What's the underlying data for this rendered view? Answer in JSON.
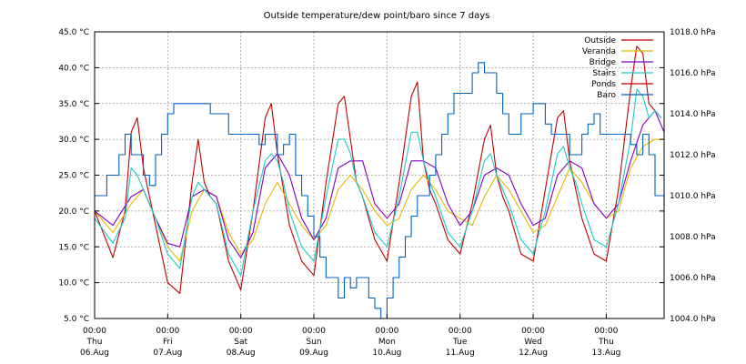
{
  "chart_data": {
    "type": "line",
    "title": "Outside temperature/dew point/baro since 7 days",
    "x_ticks": [
      {
        "hour": 0,
        "time": "00:00",
        "day": "Thu",
        "date": "06.Aug"
      },
      {
        "hour": 24,
        "time": "00:00",
        "day": "Fri",
        "date": "07.Aug"
      },
      {
        "hour": 48,
        "time": "00:00",
        "day": "Sat",
        "date": "08.Aug"
      },
      {
        "hour": 72,
        "time": "00:00",
        "day": "Sun",
        "date": "09.Aug"
      },
      {
        "hour": 96,
        "time": "00:00",
        "day": "Mon",
        "date": "10.Aug"
      },
      {
        "hour": 120,
        "time": "00:00",
        "day": "Tue",
        "date": "11.Aug"
      },
      {
        "hour": 144,
        "time": "00:00",
        "day": "Wed",
        "date": "12.Aug"
      },
      {
        "hour": 168,
        "time": "00:00",
        "day": "Thu",
        "date": "13.Aug"
      }
    ],
    "x_range_hours": [
      0,
      187
    ],
    "y_left": {
      "range": [
        5,
        45
      ],
      "ticks": [
        "5.0 °C",
        "10.0 °C",
        "15.0 °C",
        "20.0 °C",
        "25.0 °C",
        "30.0 °C",
        "35.0 °C",
        "40.0 °C",
        "45.0 °C"
      ]
    },
    "y_right": {
      "range": [
        1004,
        1018
      ],
      "ticks": [
        "1004.0 hPa",
        "1006.0 hPa",
        "1008.0 hPa",
        "1010.0 hPa",
        "1012.0 hPa",
        "1014.0 hPa",
        "1016.0 hPa",
        "1018.0 hPa"
      ]
    },
    "grid": true,
    "legend_position": "top-right",
    "series": [
      {
        "name": "Outside",
        "color": "#c00000",
        "axis": "left",
        "x": [
          0,
          6,
          10,
          12,
          14,
          16,
          20,
          24,
          28,
          32,
          34,
          36,
          38,
          40,
          44,
          48,
          52,
          56,
          58,
          60,
          62,
          64,
          68,
          72,
          76,
          80,
          82,
          84,
          86,
          88,
          92,
          96,
          100,
          104,
          106,
          108,
          110,
          112,
          116,
          120,
          124,
          128,
          130,
          132,
          134,
          136,
          140,
          144,
          148,
          152,
          154,
          156,
          158,
          160,
          164,
          168,
          172,
          176,
          178,
          180,
          182,
          184,
          186
        ],
        "y": [
          20,
          13.5,
          20,
          31,
          33,
          26,
          18,
          10,
          8.5,
          24,
          30,
          24,
          22,
          21,
          13,
          9,
          20,
          33,
          35,
          28,
          23,
          18,
          13,
          11,
          24,
          35,
          36,
          30,
          24,
          22,
          16,
          13,
          24,
          36,
          38,
          27,
          23,
          21,
          16,
          14,
          21,
          30,
          32,
          25,
          22,
          20,
          14,
          13,
          23,
          33,
          34,
          27,
          23,
          19,
          14,
          13,
          23,
          37,
          43,
          42,
          35,
          34,
          33
        ]
      },
      {
        "name": "Veranda",
        "color": "#e6b800",
        "axis": "left",
        "x": [
          0,
          6,
          12,
          16,
          20,
          24,
          28,
          32,
          36,
          40,
          44,
          48,
          52,
          56,
          60,
          64,
          68,
          72,
          76,
          80,
          84,
          88,
          92,
          96,
          100,
          104,
          108,
          112,
          116,
          120,
          124,
          128,
          132,
          136,
          140,
          144,
          148,
          152,
          156,
          160,
          164,
          168,
          172,
          176,
          180,
          184,
          187
        ],
        "y": [
          20,
          17,
          21,
          23,
          19,
          15,
          13,
          20,
          23,
          22,
          17,
          14,
          16,
          21,
          24,
          21,
          18,
          16,
          18,
          23,
          25,
          23,
          20,
          18,
          19,
          23,
          25,
          23,
          20,
          19,
          18,
          22,
          25,
          23,
          20,
          17,
          18,
          22,
          26,
          24,
          21,
          19,
          20,
          26,
          29,
          30,
          30
        ]
      },
      {
        "name": "Bridge",
        "color": "#8000c0",
        "axis": "left",
        "x": [
          0,
          6,
          12,
          16,
          20,
          24,
          28,
          32,
          36,
          40,
          44,
          48,
          52,
          56,
          60,
          64,
          68,
          72,
          76,
          80,
          84,
          88,
          92,
          96,
          100,
          104,
          108,
          112,
          116,
          120,
          124,
          128,
          132,
          136,
          140,
          144,
          148,
          152,
          156,
          160,
          164,
          168,
          172,
          176,
          180,
          184,
          187
        ],
        "y": [
          20,
          18,
          22,
          23,
          19,
          15.5,
          15,
          22,
          23,
          22,
          16,
          13.5,
          17,
          26,
          28,
          25,
          19,
          16,
          19,
          26,
          27,
          27,
          21,
          19,
          21,
          27,
          27,
          26,
          21,
          18,
          20,
          25,
          26,
          25,
          21,
          18,
          19,
          25,
          27,
          26,
          21,
          19,
          21,
          27,
          32,
          34,
          31
        ]
      },
      {
        "name": "Stairs",
        "color": "#20c8c8",
        "axis": "left",
        "x": [
          0,
          6,
          10,
          12,
          14,
          16,
          20,
          24,
          28,
          32,
          34,
          36,
          38,
          40,
          44,
          48,
          52,
          56,
          58,
          60,
          62,
          64,
          68,
          72,
          76,
          80,
          82,
          84,
          86,
          88,
          92,
          96,
          100,
          104,
          106,
          108,
          110,
          112,
          116,
          120,
          124,
          128,
          130,
          132,
          134,
          136,
          140,
          144,
          148,
          152,
          154,
          156,
          158,
          160,
          164,
          168,
          172,
          176,
          178,
          180,
          182,
          184,
          186
        ],
        "y": [
          19,
          15.5,
          19,
          26,
          25,
          23,
          19,
          14,
          12,
          22,
          24,
          23,
          22,
          21,
          14,
          11,
          20,
          27,
          28,
          27,
          24,
          20,
          15,
          13,
          22,
          30,
          30,
          28,
          24,
          22,
          17,
          15,
          22,
          31,
          31,
          27,
          24,
          22,
          17,
          15,
          20,
          27,
          28,
          25,
          23,
          21,
          16,
          14,
          20,
          28,
          29,
          26,
          24,
          21,
          16,
          15,
          21,
          30,
          37,
          36,
          33,
          34,
          33
        ]
      },
      {
        "name": "Ponds",
        "color": "#c00000",
        "axis": "left",
        "x": [],
        "y": []
      },
      {
        "name": "Baro",
        "color": "#0060c0",
        "axis": "right",
        "x": [
          0,
          4,
          8,
          10,
          12,
          16,
          18,
          20,
          22,
          24,
          26,
          28,
          30,
          32,
          36,
          38,
          40,
          44,
          48,
          52,
          54,
          56,
          60,
          62,
          64,
          66,
          68,
          70,
          72,
          74,
          76,
          78,
          80,
          82,
          84,
          86,
          88,
          90,
          92,
          94,
          96,
          98,
          100,
          102,
          104,
          106,
          108,
          110,
          112,
          114,
          116,
          118,
          120,
          124,
          126,
          128,
          132,
          134,
          136,
          140,
          144,
          148,
          150,
          152,
          156,
          160,
          162,
          164,
          166,
          168,
          172,
          176,
          178,
          180,
          182,
          184,
          186,
          187
        ],
        "y": [
          1010,
          1011,
          1012,
          1013,
          1012,
          1011,
          1010.5,
          1012,
          1013,
          1014,
          1014.5,
          1014.5,
          1014.5,
          1014.5,
          1014.5,
          1014,
          1014,
          1013,
          1013,
          1013,
          1012.5,
          1013,
          1012,
          1012.5,
          1013,
          1011,
          1010,
          1009,
          1008,
          1007,
          1006,
          1006,
          1005,
          1006,
          1005.5,
          1006,
          1006,
          1005,
          1004.5,
          1004,
          1005,
          1006,
          1007,
          1008,
          1009,
          1010,
          1010,
          1011,
          1012,
          1013,
          1014,
          1015,
          1015,
          1016,
          1016.5,
          1016,
          1015,
          1014,
          1013,
          1014,
          1014.5,
          1013.5,
          1013,
          1013,
          1012,
          1013,
          1013.5,
          1014,
          1013,
          1013,
          1013,
          1012.5,
          1012,
          1013,
          1012,
          1010,
          1010,
          1009.5
        ]
      }
    ]
  }
}
